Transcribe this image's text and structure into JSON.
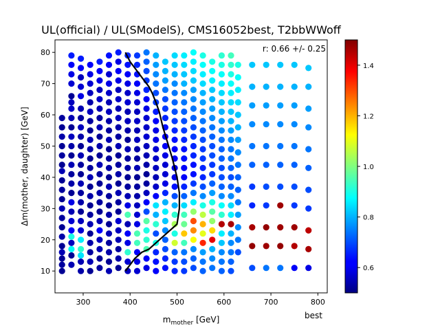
{
  "chart_data": {
    "type": "scatter",
    "title": "UL(official) / UL(SModelS), CMS16052best, T2bbWWoff",
    "annotation": "r: 0.66 +/- 0.25",
    "corner_label": "best",
    "xlabel": "m$_{mother}$ [GeV]",
    "ylabel": "Δm(mother, daughter) [GeV]",
    "xlim": [
      240,
      820
    ],
    "ylim": [
      3,
      84
    ],
    "x_ticks": [
      300,
      400,
      500,
      600,
      700,
      800
    ],
    "y_ticks": [
      10,
      20,
      30,
      40,
      50,
      60,
      70,
      80
    ],
    "colormap": "jet",
    "color_range": [
      0.5,
      1.5
    ],
    "colorbar_ticks": [
      0.6,
      0.8,
      1.0,
      1.2,
      1.4
    ],
    "grid": false,
    "legend": "none",
    "columns": [
      {
        "x": 255,
        "y": [
          10,
          12,
          14,
          16,
          18,
          21,
          24,
          27,
          30,
          33,
          36,
          39,
          42,
          44,
          47,
          50,
          53,
          56,
          59
        ],
        "r": [
          0.52,
          0.53,
          0.52,
          0.55,
          0.52,
          0.54,
          0.52,
          0.53,
          0.55,
          0.52,
          0.53,
          0.52,
          0.55,
          0.52,
          0.53,
          0.52,
          0.54,
          0.52,
          0.53
        ]
      },
      {
        "x": 275,
        "y": [
          12,
          15,
          17,
          19,
          21,
          23,
          26,
          29,
          32,
          35,
          38,
          41,
          44,
          47,
          50,
          53,
          56,
          59,
          62,
          64,
          66,
          70,
          73,
          76,
          79
        ],
        "r": [
          0.55,
          0.52,
          0.88,
          0.56,
          0.9,
          0.62,
          0.58,
          0.55,
          0.6,
          0.52,
          0.54,
          0.53,
          0.55,
          0.52,
          0.54,
          0.56,
          0.52,
          0.55,
          0.57,
          0.56,
          0.52,
          0.58,
          0.6,
          0.62,
          0.65
        ]
      },
      {
        "x": 295,
        "y": [
          10,
          13,
          15,
          17,
          20,
          23,
          26,
          29,
          32,
          35,
          38,
          41,
          44,
          47,
          50,
          53,
          56,
          59,
          62,
          66,
          69,
          72,
          75,
          78
        ],
        "r": [
          0.54,
          0.55,
          0.85,
          0.92,
          0.86,
          0.58,
          0.56,
          0.52,
          0.54,
          0.53,
          0.55,
          0.52,
          0.53,
          0.55,
          0.52,
          0.54,
          0.56,
          0.53,
          0.55,
          0.6,
          0.58,
          0.56,
          0.62,
          0.65
        ]
      },
      {
        "x": 315,
        "y": [
          10,
          13,
          16,
          19,
          22,
          25,
          28,
          31,
          34,
          37,
          40,
          43,
          46,
          49,
          52,
          55,
          58,
          61,
          64,
          67,
          70,
          73,
          76
        ],
        "r": [
          0.52,
          0.55,
          0.53,
          0.54,
          0.52,
          0.55,
          0.53,
          0.52,
          0.54,
          0.52,
          0.55,
          0.53,
          0.52,
          0.54,
          0.55,
          0.52,
          0.53,
          0.56,
          0.54,
          0.56,
          0.58,
          0.6,
          0.62
        ]
      },
      {
        "x": 335,
        "y": [
          11,
          14,
          17,
          20,
          23,
          26,
          29,
          32,
          35,
          38,
          41,
          44,
          47,
          50,
          53,
          56,
          59,
          62,
          65,
          68,
          71,
          74,
          77
        ],
        "r": [
          0.53,
          0.52,
          0.55,
          0.56,
          0.62,
          0.55,
          0.52,
          0.53,
          0.54,
          0.52,
          0.53,
          0.55,
          0.52,
          0.54,
          0.52,
          0.55,
          0.53,
          0.55,
          0.57,
          0.56,
          0.6,
          0.62,
          0.65
        ]
      },
      {
        "x": 355,
        "y": [
          10,
          13,
          16,
          19,
          22,
          25,
          28,
          31,
          34,
          37,
          40,
          43,
          46,
          49,
          52,
          55,
          58,
          61,
          64,
          67,
          70,
          73,
          76,
          79
        ],
        "r": [
          0.55,
          0.52,
          0.54,
          0.53,
          0.55,
          0.52,
          0.54,
          0.52,
          0.53,
          0.55,
          0.52,
          0.54,
          0.53,
          0.52,
          0.55,
          0.53,
          0.54,
          0.56,
          0.55,
          0.57,
          0.6,
          0.58,
          0.62,
          0.64
        ]
      },
      {
        "x": 375,
        "y": [
          11,
          14,
          17,
          20,
          23,
          26,
          29,
          32,
          35,
          38,
          41,
          44,
          47,
          50,
          53,
          56,
          59,
          62,
          65,
          68,
          71,
          74,
          77,
          80
        ],
        "r": [
          0.52,
          0.54,
          0.53,
          0.55,
          0.56,
          0.58,
          0.52,
          0.53,
          0.55,
          0.52,
          0.54,
          0.53,
          0.52,
          0.55,
          0.53,
          0.54,
          0.56,
          0.55,
          0.57,
          0.56,
          0.6,
          0.62,
          0.6,
          0.65
        ]
      },
      {
        "x": 395,
        "y": [
          10,
          13,
          16,
          19,
          22,
          25,
          28,
          31,
          34,
          37,
          40,
          43,
          46,
          49,
          52,
          55,
          58,
          61,
          64,
          67,
          70,
          73,
          76,
          79
        ],
        "r": [
          0.56,
          0.58,
          0.92,
          0.6,
          0.62,
          0.55,
          0.95,
          0.6,
          0.55,
          0.53,
          0.52,
          0.54,
          0.53,
          0.55,
          0.52,
          0.54,
          0.56,
          0.55,
          0.58,
          0.57,
          0.6,
          0.62,
          0.64,
          0.66
        ]
      },
      {
        "x": 415,
        "y": [
          10,
          13,
          16,
          19,
          22,
          25,
          28,
          31,
          34,
          37,
          40,
          43,
          46,
          49,
          52,
          55,
          58,
          61,
          64,
          67,
          70,
          73,
          76,
          79
        ],
        "r": [
          0.58,
          0.6,
          0.62,
          0.94,
          0.95,
          0.6,
          0.58,
          0.56,
          0.54,
          0.53,
          0.52,
          0.55,
          0.53,
          0.54,
          0.56,
          0.55,
          0.57,
          0.56,
          0.58,
          0.6,
          0.62,
          0.64,
          0.66,
          0.68
        ]
      },
      {
        "x": 435,
        "y": [
          11,
          14,
          17,
          20,
          23,
          26,
          29,
          32,
          35,
          38,
          41,
          44,
          47,
          50,
          53,
          56,
          59,
          62,
          65,
          68,
          71,
          74,
          77,
          80
        ],
        "r": [
          0.6,
          0.62,
          0.95,
          0.92,
          0.9,
          0.96,
          0.7,
          0.62,
          0.56,
          0.53,
          0.52,
          0.54,
          0.55,
          0.56,
          0.58,
          0.57,
          0.58,
          0.6,
          0.62,
          0.66,
          0.68,
          0.7,
          0.72,
          0.74
        ]
      },
      {
        "x": 455,
        "y": [
          10,
          13,
          16,
          19,
          22,
          25,
          28,
          31,
          34,
          37,
          40,
          43,
          46,
          49,
          52,
          55,
          58,
          61,
          64,
          67,
          70,
          73,
          76,
          79
        ],
        "r": [
          0.62,
          0.64,
          0.66,
          0.9,
          0.7,
          0.92,
          0.8,
          0.85,
          0.62,
          0.57,
          0.55,
          0.56,
          0.57,
          0.58,
          0.6,
          0.6,
          0.62,
          0.65,
          0.68,
          0.7,
          0.74,
          0.76,
          0.78,
          0.8
        ]
      },
      {
        "x": 475,
        "y": [
          11,
          14,
          17,
          20,
          23,
          26,
          29,
          32,
          35,
          38,
          41,
          44,
          47,
          50,
          53,
          56,
          59,
          62,
          65,
          68,
          71,
          74,
          77
        ],
        "r": [
          0.64,
          0.66,
          0.7,
          0.72,
          0.76,
          0.82,
          0.86,
          0.8,
          0.66,
          0.6,
          0.58,
          0.58,
          0.6,
          0.62,
          0.62,
          0.64,
          0.66,
          0.68,
          0.7,
          0.74,
          0.78,
          0.8,
          0.82
        ]
      },
      {
        "x": 495,
        "y": [
          10,
          13,
          16,
          19,
          22,
          25,
          28,
          31,
          34,
          37,
          40,
          43,
          46,
          49,
          52,
          55,
          58,
          61,
          64,
          67,
          70,
          73,
          76,
          79
        ],
        "r": [
          0.66,
          0.68,
          0.72,
          1.08,
          0.9,
          1.04,
          0.92,
          0.8,
          0.7,
          0.64,
          0.6,
          0.6,
          0.62,
          0.62,
          0.64,
          0.66,
          0.68,
          0.7,
          0.72,
          0.74,
          0.76,
          0.8,
          0.82,
          0.84
        ]
      },
      {
        "x": 515,
        "y": [
          10,
          13,
          16,
          19,
          22,
          25,
          28,
          31,
          34,
          37,
          40,
          43,
          46,
          49,
          52,
          55,
          58,
          61,
          64,
          67,
          70,
          73,
          76,
          79
        ],
        "r": [
          0.68,
          0.7,
          0.74,
          0.94,
          1.18,
          0.98,
          0.94,
          0.84,
          0.72,
          0.66,
          0.62,
          0.62,
          0.64,
          0.64,
          0.66,
          0.68,
          0.7,
          0.72,
          0.74,
          0.76,
          0.8,
          0.82,
          0.84,
          0.86
        ]
      },
      {
        "x": 535,
        "y": [
          11,
          14,
          17,
          20,
          23,
          26,
          29,
          32,
          35,
          38,
          41,
          44,
          47,
          50,
          53,
          56,
          59,
          62,
          65,
          68,
          71,
          74,
          77,
          80
        ],
        "r": [
          0.7,
          0.72,
          0.76,
          1.12,
          1.24,
          1.3,
          1.02,
          0.86,
          0.74,
          0.68,
          0.64,
          0.64,
          0.66,
          0.66,
          0.68,
          0.7,
          0.72,
          0.74,
          0.76,
          0.78,
          0.82,
          0.84,
          0.86,
          0.88
        ]
      },
      {
        "x": 555,
        "y": [
          10,
          13,
          16,
          19,
          22,
          25,
          28,
          31,
          34,
          37,
          40,
          43,
          46,
          49,
          52,
          55,
          58,
          61,
          64,
          67,
          70,
          73,
          76,
          79
        ],
        "r": [
          0.72,
          0.74,
          0.78,
          1.34,
          1.1,
          1.2,
          1.06,
          0.9,
          0.76,
          0.7,
          0.66,
          0.66,
          0.68,
          0.68,
          0.7,
          0.72,
          0.74,
          0.76,
          0.78,
          0.8,
          0.84,
          0.86,
          0.88,
          0.9
        ]
      },
      {
        "x": 575,
        "y": [
          11,
          14,
          17,
          20,
          23,
          26,
          29,
          32,
          35,
          38,
          41,
          44,
          47,
          50,
          53,
          56,
          59,
          62,
          65,
          68,
          71,
          74,
          77
        ],
        "r": [
          0.74,
          0.76,
          0.8,
          1.4,
          1.16,
          1.02,
          0.96,
          0.9,
          0.78,
          0.72,
          0.68,
          0.68,
          0.7,
          0.7,
          0.72,
          0.74,
          0.76,
          0.78,
          0.8,
          0.82,
          0.86,
          0.88,
          0.9
        ]
      },
      {
        "x": 595,
        "y": [
          10,
          13,
          16,
          19,
          22,
          25,
          28,
          31,
          34,
          37,
          40,
          43,
          46,
          49,
          52,
          55,
          58,
          61,
          64,
          67,
          70,
          73,
          76,
          79
        ],
        "r": [
          0.72,
          0.74,
          0.76,
          0.82,
          0.86,
          1.45,
          0.92,
          0.88,
          0.76,
          0.72,
          0.7,
          0.7,
          0.72,
          0.72,
          0.74,
          0.76,
          0.78,
          0.8,
          0.82,
          0.84,
          0.86,
          0.88,
          0.9,
          0.92
        ]
      },
      {
        "x": 615,
        "y": [
          10,
          13,
          16,
          19,
          22,
          25,
          28,
          31,
          34,
          37,
          40,
          43,
          46,
          49,
          52,
          55,
          58,
          61,
          64,
          67,
          70,
          73,
          76,
          79
        ],
        "r": [
          0.7,
          0.72,
          0.74,
          0.76,
          0.8,
          1.46,
          0.86,
          0.84,
          0.76,
          0.72,
          0.7,
          0.72,
          0.74,
          0.74,
          0.76,
          0.78,
          0.8,
          0.82,
          0.84,
          0.86,
          0.88,
          0.9,
          0.92,
          0.94
        ]
      },
      {
        "x": 630,
        "y": [
          16,
          20,
          24,
          28,
          32,
          36,
          40,
          44,
          48,
          52,
          56,
          60,
          64,
          68,
          72,
          76
        ],
        "r": [
          0.7,
          0.74,
          0.76,
          0.78,
          0.74,
          0.72,
          0.72,
          0.74,
          0.76,
          0.78,
          0.8,
          0.82,
          0.84,
          0.86,
          0.88,
          0.9
        ]
      },
      {
        "x": 660,
        "y": [
          11,
          18,
          24,
          31,
          37,
          44,
          50,
          57,
          63,
          69,
          76
        ],
        "r": [
          0.7,
          1.48,
          1.46,
          0.66,
          0.68,
          0.72,
          0.74,
          0.76,
          0.78,
          0.8,
          0.82
        ]
      },
      {
        "x": 690,
        "y": [
          11,
          18,
          24,
          31,
          37,
          44,
          50,
          57,
          63,
          69,
          76
        ],
        "r": [
          0.74,
          1.47,
          1.48,
          0.68,
          0.7,
          0.72,
          0.74,
          0.76,
          0.78,
          0.8,
          0.82
        ]
      },
      {
        "x": 720,
        "y": [
          11,
          18,
          24,
          31,
          37,
          44,
          50,
          57,
          63,
          69,
          76
        ],
        "r": [
          0.74,
          1.48,
          1.47,
          1.47,
          0.7,
          0.72,
          0.74,
          0.76,
          0.78,
          0.8,
          0.82
        ]
      },
      {
        "x": 750,
        "y": [
          11,
          18,
          24,
          31,
          37,
          44,
          50,
          57,
          63,
          69,
          76
        ],
        "r": [
          0.62,
          1.45,
          1.47,
          0.68,
          0.7,
          0.72,
          0.74,
          0.76,
          0.78,
          0.8,
          0.82
        ]
      },
      {
        "x": 780,
        "y": [
          11,
          17,
          23,
          30,
          36,
          43,
          49,
          56,
          62,
          69,
          75
        ],
        "r": [
          0.6,
          1.46,
          1.44,
          0.68,
          0.7,
          0.72,
          0.74,
          0.76,
          0.78,
          0.8,
          0.82
        ]
      }
    ],
    "exclusion_line": {
      "x": [
        390,
        400,
        410,
        425,
        440,
        455,
        470,
        485,
        500,
        505,
        505,
        500,
        490,
        480,
        470,
        462,
        455,
        447,
        440,
        430,
        420,
        410,
        400,
        390
      ],
      "y": [
        10,
        12,
        14,
        16,
        17,
        19,
        21,
        23,
        25,
        30,
        35,
        40,
        46,
        51,
        56,
        61,
        64,
        67,
        69,
        71,
        73,
        75,
        77,
        80
      ]
    }
  }
}
